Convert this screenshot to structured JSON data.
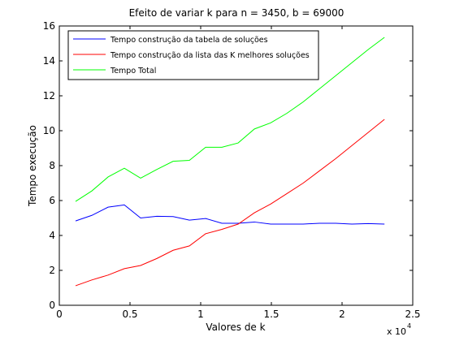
{
  "chart_data": {
    "type": "line",
    "title": "Efeito de variar k para n = 3450, b = 69000",
    "xlabel": "Valores de  k",
    "ylabel": "Tempo execução",
    "x_exponent_label": "x 10",
    "x_exponent_power": "4",
    "xlim": [
      0,
      25000
    ],
    "ylim": [
      0,
      16
    ],
    "xticks": [
      0,
      5000,
      10000,
      15000,
      20000,
      25000
    ],
    "xtick_labels": [
      "0",
      "0.5",
      "1",
      "1.5",
      "2",
      "2.5"
    ],
    "yticks": [
      0,
      2,
      4,
      6,
      8,
      10,
      12,
      14,
      16
    ],
    "ytick_labels": [
      "0",
      "2",
      "4",
      "6",
      "8",
      "10",
      "12",
      "14",
      "16"
    ],
    "grid": false,
    "legend_position": "top-left",
    "x": [
      1150,
      2300,
      3450,
      4600,
      5750,
      6900,
      8050,
      9200,
      10350,
      11500,
      12650,
      13800,
      14950,
      16100,
      17250,
      18400,
      19550,
      20700,
      21850,
      23000
    ],
    "series": [
      {
        "name": "Tempo construção da tabela de soluções",
        "color": "#0000ff",
        "values": [
          4.83,
          5.15,
          5.62,
          5.75,
          5.0,
          5.1,
          5.08,
          4.88,
          4.97,
          4.7,
          4.7,
          4.77,
          4.65,
          4.65,
          4.65,
          4.7,
          4.7,
          4.65,
          4.68,
          4.65
        ]
      },
      {
        "name": "Tempo construção da lista das K melhores soluções",
        "color": "#ff0000",
        "values": [
          1.12,
          1.45,
          1.73,
          2.1,
          2.28,
          2.68,
          3.15,
          3.4,
          4.1,
          4.35,
          4.65,
          5.3,
          5.8,
          6.4,
          7.0,
          7.7,
          8.4,
          9.15,
          9.9,
          10.65
        ]
      },
      {
        "name": "Tempo Total",
        "color": "#00ff00",
        "values": [
          5.95,
          6.55,
          7.35,
          7.85,
          7.28,
          7.78,
          8.25,
          8.3,
          9.05,
          9.05,
          9.3,
          10.1,
          10.45,
          11.0,
          11.65,
          12.4,
          13.15,
          13.9,
          14.65,
          15.35
        ]
      }
    ]
  }
}
